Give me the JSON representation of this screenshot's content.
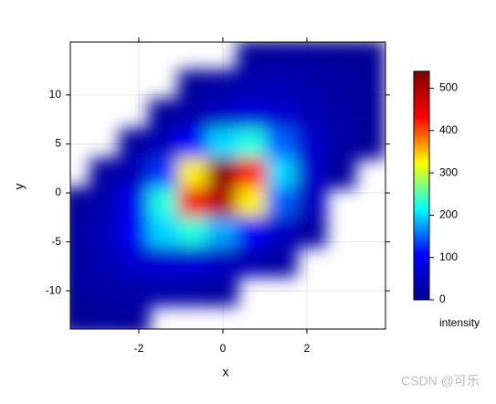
{
  "chart_data": {
    "type": "heatmap",
    "xlabel": "x",
    "ylabel": "y",
    "colorbar_label": "intensity",
    "x": [
      -3.5,
      -2.8,
      -2.1,
      -1.4,
      -0.7,
      0,
      0.7,
      1.4,
      2.1,
      2.8,
      3.5
    ],
    "y": [
      14,
      11,
      8,
      5,
      2,
      -1,
      -4,
      -7,
      -10,
      -13
    ],
    "z": [
      [
        null,
        null,
        null,
        null,
        null,
        null,
        10,
        15,
        15,
        10,
        5
      ],
      [
        null,
        null,
        null,
        null,
        10,
        20,
        30,
        35,
        25,
        15,
        10
      ],
      [
        null,
        null,
        null,
        10,
        25,
        50,
        70,
        60,
        40,
        20,
        10
      ],
      [
        null,
        null,
        15,
        40,
        110,
        200,
        230,
        150,
        60,
        20,
        5
      ],
      [
        null,
        15,
        40,
        130,
        330,
        530,
        430,
        200,
        60,
        10,
        null
      ],
      [
        10,
        30,
        90,
        230,
        440,
        500,
        330,
        150,
        40,
        null,
        null
      ],
      [
        15,
        40,
        100,
        200,
        230,
        180,
        110,
        50,
        15,
        null,
        null
      ],
      [
        15,
        35,
        60,
        70,
        70,
        50,
        30,
        15,
        null,
        null,
        null
      ],
      [
        10,
        20,
        25,
        25,
        20,
        15,
        null,
        null,
        null,
        null,
        null
      ],
      [
        5,
        10,
        10,
        null,
        null,
        null,
        null,
        null,
        null,
        null,
        null
      ]
    ],
    "xlim": [
      -3.63,
      3.87
    ],
    "ylim": [
      -13.9,
      15.4
    ],
    "xticks": [
      -2,
      0,
      2
    ],
    "yticks": [
      -10,
      -5,
      0,
      5,
      10
    ],
    "zlim": [
      0,
      540
    ],
    "zticks": [
      0,
      100,
      200,
      300,
      400,
      500
    ],
    "colormap": [
      "#00008f",
      "#0000ff",
      "#00ffff",
      "#ffff00",
      "#ff0000",
      "#800000"
    ],
    "grid": true,
    "watermark": "CSDN @可乐"
  }
}
